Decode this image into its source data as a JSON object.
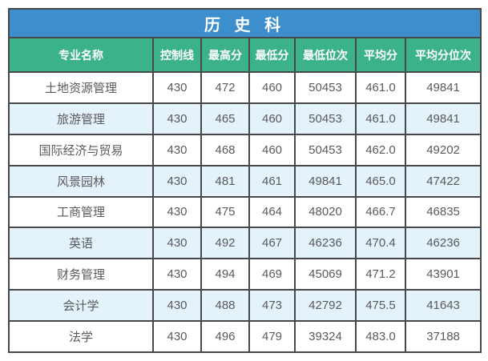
{
  "chart_data": {
    "type": "table",
    "title": "历 史 科",
    "columns": [
      "专业名称",
      "控制线",
      "最高分",
      "最低分",
      "最低位次",
      "平均分",
      "平均分位次"
    ],
    "rows": [
      [
        "土地资源管理",
        "430",
        "472",
        "460",
        "50453",
        "461.0",
        "49841"
      ],
      [
        "旅游管理",
        "430",
        "465",
        "460",
        "50453",
        "461.0",
        "49841"
      ],
      [
        "国际经济与贸易",
        "430",
        "468",
        "460",
        "50453",
        "462.0",
        "49202"
      ],
      [
        "风景园林",
        "430",
        "481",
        "461",
        "49841",
        "465.0",
        "47422"
      ],
      [
        "工商管理",
        "430",
        "475",
        "464",
        "48020",
        "466.7",
        "46835"
      ],
      [
        "英语",
        "430",
        "492",
        "467",
        "46236",
        "470.4",
        "46236"
      ],
      [
        "财务管理",
        "430",
        "494",
        "469",
        "45069",
        "471.2",
        "43901"
      ],
      [
        "会计学",
        "430",
        "488",
        "473",
        "42792",
        "475.5",
        "41643"
      ],
      [
        "法学",
        "430",
        "496",
        "479",
        "39324",
        "483.0",
        "37188"
      ]
    ],
    "layout": {
      "grid": true,
      "alternating_rows": true
    }
  },
  "colors": {
    "title_bg": "#3d8ecd",
    "header_bg": "#3bb28a",
    "row_alt_bg": "#e4f2fb",
    "border": "#48484a",
    "data_text": "#595a5c",
    "header_text": "#ffffff"
  }
}
